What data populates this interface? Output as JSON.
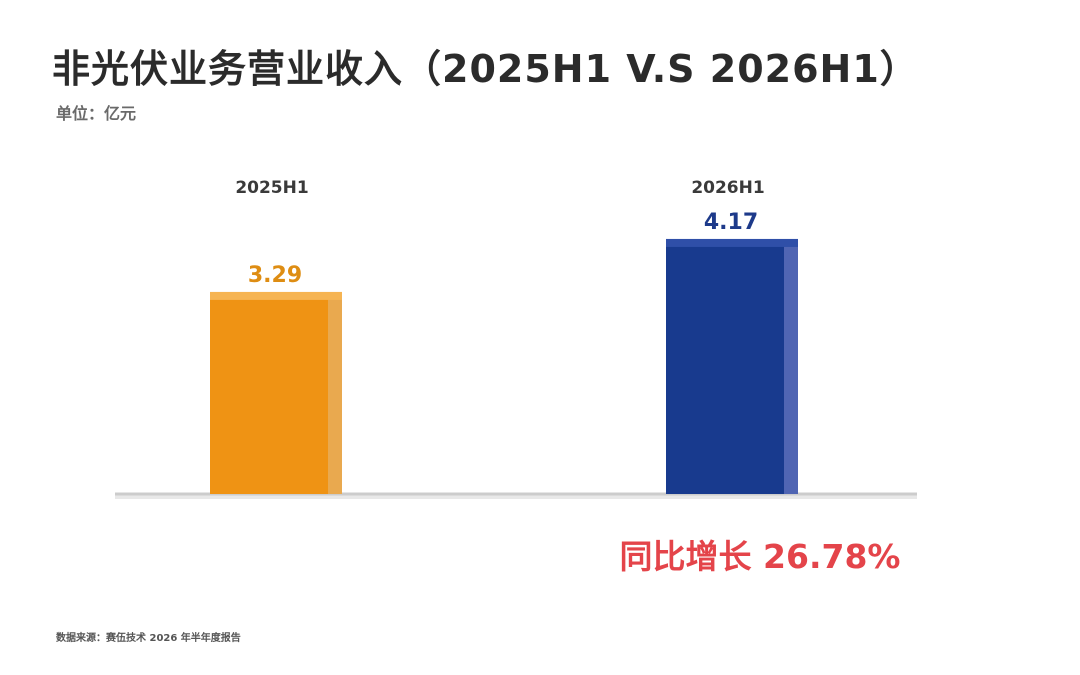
{
  "title": "非光伏业务营业收入（2025H1 V.S 2026H1）",
  "unit_label": "单位：亿元",
  "growth_label": "同比增长 26.78%",
  "source_label": "数据来源：赛伍技术 2026 年半年度报告",
  "chart_data": {
    "type": "bar",
    "title": "非光伏业务营业收入（2025H1 V.S 2026H1）",
    "ylabel": "",
    "xlabel": "",
    "categories": [
      "2025H1",
      "2026H1"
    ],
    "series": [
      {
        "values": [
          3.29,
          4.17
        ]
      }
    ],
    "value_labels": [
      "3.29",
      "4.17"
    ],
    "ylim": [
      0,
      4.85
    ],
    "grid": false,
    "legend": "none",
    "colors": {
      "bar_fill": [
        "#ef9314",
        "#183a8e"
      ],
      "bar_side": [
        "#e9a94f",
        "#5065b3"
      ],
      "bar_top": [
        "#f6b452",
        "#2f4fa8"
      ],
      "value_label": [
        "#de8d13",
        "#1d3a8a"
      ],
      "category_label": "#3a3a3a",
      "baseline": "#cccccc"
    }
  }
}
